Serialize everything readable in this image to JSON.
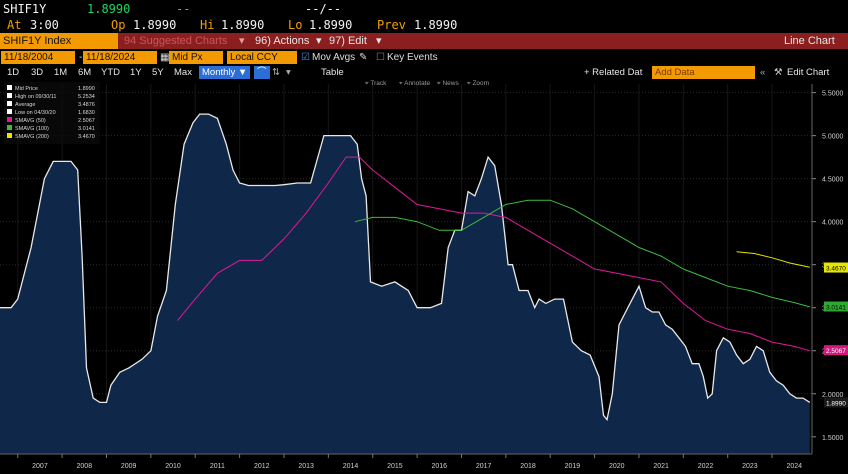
{
  "quote": {
    "ticker": "SHIF1Y",
    "last": "1.8990",
    "change": "--",
    "change_time": "--/--",
    "at_label": "At",
    "at_time": "3:00",
    "op_label": "Op",
    "op": "1.8990",
    "hi_label": "Hi",
    "hi": "1.8990",
    "lo_label": "Lo",
    "lo": "1.8990",
    "prev_label": "Prev",
    "prev": "1.8990"
  },
  "menubar": {
    "security": "SHIF1Y Index",
    "suggested": "94 Suggested Charts",
    "actions": "96) Actions",
    "edit": "97) Edit",
    "chart_type": "Line Chart"
  },
  "toolbar": {
    "start_date": "11/18/2004",
    "end_date": "11/18/2024",
    "field": "Mid Px",
    "currency": "Local CCY",
    "mov_avgs": "Mov Avgs",
    "key_events": "Key Events",
    "related_data": "+ Related Dat",
    "add_data_placeholder": "Add Data",
    "edit_chart": "Edit Chart"
  },
  "periods": [
    "1D",
    "3D",
    "1M",
    "6M",
    "YTD",
    "1Y",
    "5Y",
    "Max"
  ],
  "periodicity": "Monthly",
  "table_label": "Table",
  "tools": [
    "Track",
    "Annotate",
    "News",
    "Zoom"
  ],
  "legend": [
    {
      "label": "Mid Price",
      "value": "1.8990",
      "color": "#ffffff"
    },
    {
      "label": "High on 09/30/11",
      "value": "5.2534",
      "color": "#ffffff"
    },
    {
      "label": "Average",
      "value": "3.4876",
      "color": "#ffffff"
    },
    {
      "label": "Low on 04/30/20",
      "value": "1.6830",
      "color": "#ffffff"
    },
    {
      "label": "SMAVG (50)",
      "value": "2.5067",
      "color": "#e0189a"
    },
    {
      "label": "SMAVG (100)",
      "value": "3.0141",
      "color": "#3dbb3d"
    },
    {
      "label": "SMAVG (200)",
      "value": "3.4670",
      "color": "#e6e600"
    }
  ],
  "badges": [
    {
      "text": "3.4670",
      "value": 3.467,
      "bg": "#e6e600",
      "fg": "#000"
    },
    {
      "text": "3.0141",
      "value": 3.0141,
      "bg": "#2fa82f",
      "fg": "#000"
    },
    {
      "text": "2.5067",
      "value": 2.5067,
      "bg": "#d3187f",
      "fg": "#fff"
    },
    {
      "text": "1.8990",
      "value": 1.899,
      "bg": "#1a1a1a",
      "fg": "#fff"
    }
  ],
  "chart_data": {
    "type": "area",
    "ylim": [
      1.3,
      5.6
    ],
    "yticks": [
      1.5,
      2.0,
      2.5,
      3.0,
      3.5,
      4.0,
      4.5,
      5.0,
      5.5
    ],
    "ytick_labels": [
      "1.5000",
      "2.0000",
      "2.5000",
      "3.0000",
      "3.5000",
      "4.0000",
      "4.5000",
      "5.0000",
      "5.5000"
    ],
    "xlim": [
      2006.6,
      2024.9
    ],
    "xticks": [
      2007,
      2008,
      2009,
      2010,
      2011,
      2012,
      2013,
      2014,
      2015,
      2016,
      2017,
      2018,
      2019,
      2020,
      2021,
      2022,
      2023,
      2024
    ],
    "series": [
      {
        "name": "Mid Price",
        "color": "#e8e8e8",
        "x": [
          2006.6,
          2006.85,
          2007.0,
          2007.3,
          2007.6,
          2007.8,
          2008.0,
          2008.2,
          2008.35,
          2008.45,
          2008.55,
          2008.7,
          2008.85,
          2009.0,
          2009.1,
          2009.3,
          2009.5,
          2009.8,
          2010.0,
          2010.15,
          2010.35,
          2010.55,
          2010.75,
          2010.95,
          2011.1,
          2011.3,
          2011.5,
          2011.7,
          2011.85,
          2012.0,
          2012.2,
          2012.4,
          2012.6,
          2012.8,
          2013.0,
          2013.3,
          2013.6,
          2013.9,
          2014.1,
          2014.3,
          2014.5,
          2014.65,
          2014.75,
          2014.85,
          2014.95,
          2015.2,
          2015.5,
          2015.8,
          2016.0,
          2016.3,
          2016.55,
          2016.7,
          2016.85,
          2017.0,
          2017.15,
          2017.3,
          2017.45,
          2017.6,
          2017.75,
          2017.9,
          2018.05,
          2018.15,
          2018.3,
          2018.5,
          2018.65,
          2018.75,
          2018.9,
          2019.1,
          2019.3,
          2019.5,
          2019.7,
          2019.9,
          2020.1,
          2020.2,
          2020.28,
          2020.4,
          2020.55,
          2020.7,
          2020.85,
          2021.0,
          2021.15,
          2021.3,
          2021.45,
          2021.6,
          2021.75,
          2021.9,
          2022.05,
          2022.2,
          2022.35,
          2022.45,
          2022.55,
          2022.65,
          2022.75,
          2022.9,
          2023.05,
          2023.2,
          2023.35,
          2023.5,
          2023.65,
          2023.8,
          2023.95,
          2024.1,
          2024.25,
          2024.4,
          2024.55,
          2024.7,
          2024.85
        ],
        "y": [
          3.0,
          3.0,
          3.1,
          3.7,
          4.5,
          4.7,
          4.7,
          4.7,
          4.6,
          3.6,
          2.3,
          1.95,
          1.9,
          1.9,
          2.1,
          2.25,
          2.3,
          2.4,
          2.5,
          2.9,
          3.2,
          4.2,
          4.9,
          5.15,
          5.25,
          5.25,
          5.2,
          4.9,
          4.6,
          4.45,
          4.42,
          4.42,
          4.42,
          4.42,
          4.43,
          4.45,
          4.45,
          5.0,
          5.0,
          5.0,
          5.0,
          4.9,
          4.5,
          4.3,
          3.3,
          3.25,
          3.3,
          3.2,
          3.0,
          3.0,
          3.05,
          3.7,
          3.9,
          3.9,
          4.35,
          4.3,
          4.5,
          4.75,
          4.65,
          4.2,
          3.5,
          3.5,
          3.2,
          3.2,
          3.0,
          3.1,
          3.05,
          3.1,
          3.1,
          2.6,
          2.5,
          2.45,
          2.2,
          1.75,
          1.7,
          2.0,
          2.8,
          2.95,
          3.1,
          3.25,
          3.0,
          2.95,
          2.95,
          2.8,
          2.75,
          2.65,
          2.55,
          2.35,
          2.35,
          2.2,
          1.95,
          2.0,
          2.5,
          2.65,
          2.6,
          2.45,
          2.35,
          2.4,
          2.55,
          2.5,
          2.25,
          2.15,
          2.1,
          2.0,
          1.95,
          1.95,
          1.9
        ]
      },
      {
        "name": "SMAVG (50)",
        "color": "#e0189a",
        "x": [
          2010.6,
          2011.0,
          2011.5,
          2012.0,
          2012.5,
          2013.0,
          2013.5,
          2014.0,
          2014.4,
          2014.7,
          2015.0,
          2015.5,
          2016.0,
          2016.5,
          2017.0,
          2017.5,
          2018.0,
          2018.5,
          2019.0,
          2019.5,
          2020.0,
          2020.5,
          2021.0,
          2021.5,
          2022.0,
          2022.5,
          2023.0,
          2023.5,
          2024.0,
          2024.5,
          2024.85
        ],
        "y": [
          2.85,
          3.1,
          3.4,
          3.55,
          3.55,
          3.8,
          4.1,
          4.45,
          4.75,
          4.75,
          4.6,
          4.4,
          4.2,
          4.15,
          4.1,
          4.1,
          4.05,
          3.9,
          3.75,
          3.6,
          3.45,
          3.4,
          3.35,
          3.3,
          3.05,
          2.85,
          2.75,
          2.7,
          2.6,
          2.55,
          2.5
        ]
      },
      {
        "name": "SMAVG (100)",
        "color": "#3dbb3d",
        "x": [
          2014.6,
          2015.0,
          2015.5,
          2016.0,
          2016.5,
          2017.0,
          2017.5,
          2018.0,
          2018.5,
          2019.0,
          2019.5,
          2020.0,
          2020.5,
          2021.0,
          2021.5,
          2022.0,
          2022.5,
          2023.0,
          2023.5,
          2024.0,
          2024.5,
          2024.85
        ],
        "y": [
          4.0,
          4.05,
          4.05,
          4.0,
          3.9,
          3.9,
          4.05,
          4.2,
          4.25,
          4.25,
          4.15,
          4.0,
          3.85,
          3.7,
          3.6,
          3.45,
          3.35,
          3.25,
          3.2,
          3.12,
          3.06,
          3.01
        ]
      },
      {
        "name": "SMAVG (200)",
        "color": "#e6e600",
        "x": [
          2023.2,
          2023.6,
          2024.0,
          2024.4,
          2024.85
        ],
        "y": [
          3.65,
          3.63,
          3.58,
          3.52,
          3.47
        ]
      }
    ]
  }
}
